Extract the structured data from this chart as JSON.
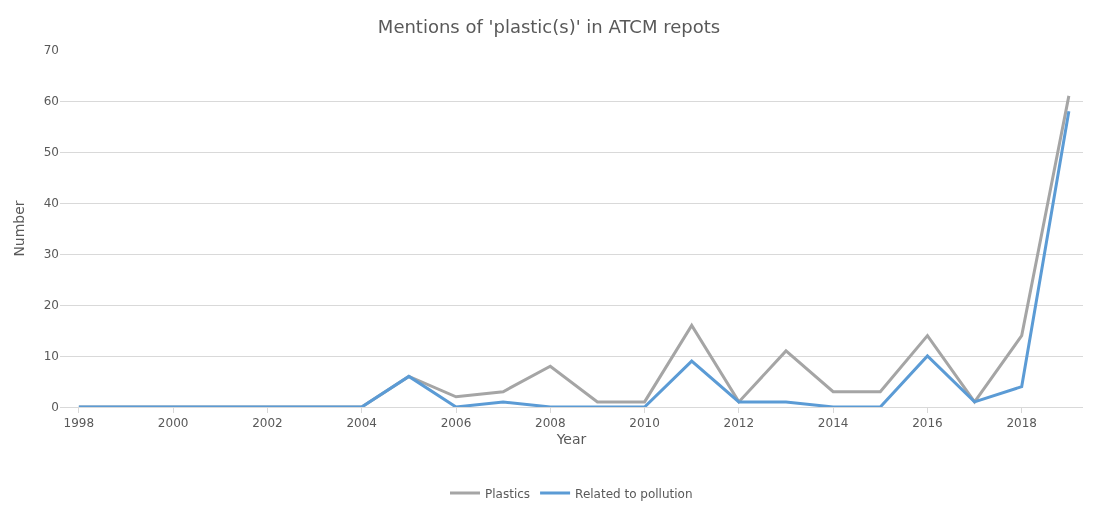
{
  "chart_data": {
    "type": "line",
    "title": "Mentions of 'plastic(s)' in ATCM repots",
    "xlabel": "Year",
    "ylabel": "Number",
    "x": [
      1998,
      1999,
      2000,
      2001,
      2002,
      2003,
      2004,
      2005,
      2006,
      2007,
      2008,
      2009,
      2010,
      2011,
      2012,
      2013,
      2014,
      2015,
      2016,
      2017,
      2018,
      2019
    ],
    "series": [
      {
        "name": "Plastics",
        "color": "#a5a5a5",
        "values": [
          0,
          0,
          0,
          0,
          0,
          0,
          0,
          6,
          2,
          3,
          8,
          1,
          1,
          16,
          1,
          11,
          3,
          3,
          14,
          1,
          14,
          61
        ]
      },
      {
        "name": "Related to pollution",
        "color": "#5b9bd5",
        "values": [
          0,
          0,
          0,
          0,
          0,
          0,
          0,
          6,
          0,
          1,
          0,
          0,
          0,
          9,
          1,
          1,
          0,
          0,
          10,
          1,
          4,
          58
        ]
      }
    ],
    "xlim": [
      1997.6,
      2019.3
    ],
    "xticks": [
      1998,
      2000,
      2002,
      2004,
      2006,
      2008,
      2010,
      2012,
      2014,
      2016,
      2018
    ],
    "ylim": [
      0,
      70
    ],
    "yticks": [
      0,
      10,
      20,
      30,
      40,
      50,
      60,
      70
    ],
    "grid": "y",
    "legend": "bottom",
    "marker": "none",
    "line_style": "solid"
  }
}
